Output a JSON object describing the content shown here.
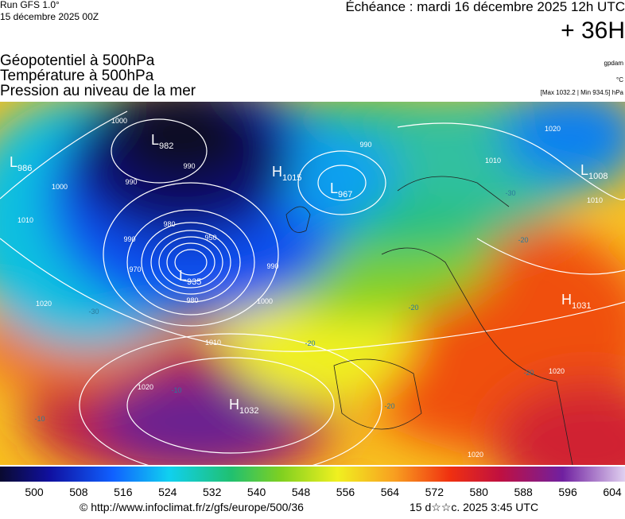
{
  "header": {
    "run": "Run GFS 1.0°",
    "date": "15 décembre 2025 00Z",
    "echeance": "Échéance : mardi 16 décembre 2025 12h UTC",
    "lead": "+ 36H"
  },
  "titles": [
    "Géopotentiel à 500hPa",
    "Température à 500hPa",
    "Pression au niveau de la mer"
  ],
  "units": [
    "gpdam",
    "°C",
    "[Max 1032.2 | Min 934.5] hPa"
  ],
  "centers": [
    {
      "kind": "L",
      "value": "982"
    },
    {
      "kind": "L",
      "value": "986"
    },
    {
      "kind": "H",
      "value": "1015"
    },
    {
      "kind": "L",
      "value": "967"
    },
    {
      "kind": "L",
      "value": "935"
    },
    {
      "kind": "H",
      "value": "1032"
    },
    {
      "kind": "L",
      "value": "1008"
    },
    {
      "kind": "H",
      "value": "1031"
    }
  ],
  "isobar_labels": [
    "1000",
    "990",
    "990",
    "1000",
    "1010",
    "980",
    "950",
    "970",
    "990",
    "980",
    "990",
    "1000",
    "1010",
    "1020",
    "1020",
    "1010",
    "1010",
    "1020",
    "1020",
    "1020",
    "990"
  ],
  "temperature_labels": [
    "-30",
    "-30",
    "-20",
    "-20",
    "-20",
    "-20",
    "-10",
    "-20",
    "-10"
  ],
  "colorbar": {
    "labels": [
      500,
      508,
      516,
      524,
      532,
      540,
      548,
      556,
      564,
      572,
      580,
      588,
      596,
      604
    ]
  },
  "footer": {
    "url": "© http://www.infoclimat.fr/z/gfs/europe/500/36",
    "time": "15 d☆☆c. 2025  3:45 UTC"
  }
}
